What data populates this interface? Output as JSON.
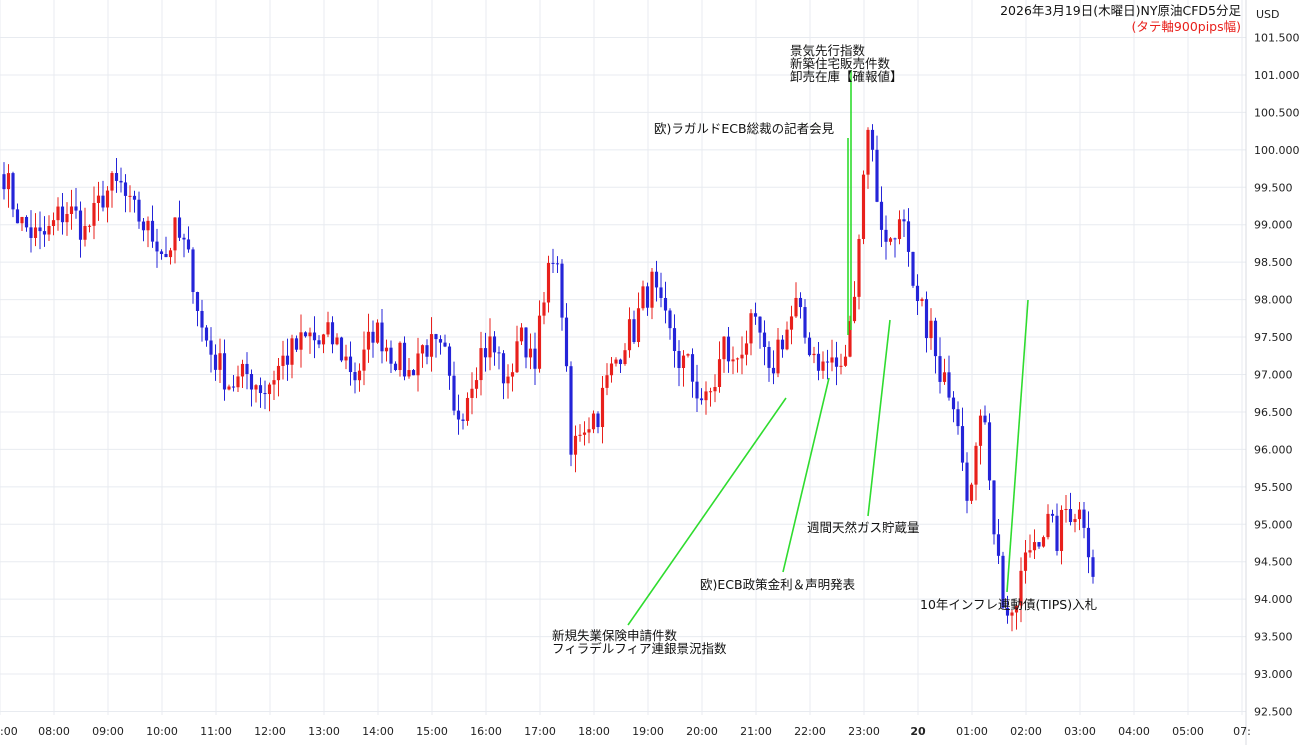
{
  "chart_data": {
    "type": "candlestick",
    "title": "2026年3月19日(木曜日)NY原油CFD5分足",
    "subtitle": "(タテ軸900pips幅)",
    "currency": "USD",
    "ylim": [
      92.5,
      101.5
    ],
    "y_ticks": [
      "92.500",
      "93.000",
      "93.500",
      "94.000",
      "94.500",
      "95.000",
      "95.500",
      "96.000",
      "96.500",
      "97.000",
      "97.500",
      "98.000",
      "98.500",
      "99.000",
      "99.500",
      "100.000",
      "100.500",
      "101.000",
      "101.500"
    ],
    "x_ticks": [
      ":00",
      "08:00",
      "09:00",
      "10:00",
      "11:00",
      "12:00",
      "13:00",
      "14:00",
      "15:00",
      "16:00",
      "17:00",
      "18:00",
      "19:00",
      "20:00",
      "21:00",
      "22:00",
      "23:00",
      "20",
      "01:00",
      "02:00",
      "03:00",
      "04:00",
      "05:00",
      "07:"
    ],
    "x_start": "07:00",
    "bar_minutes": 5,
    "grid": true,
    "colors": {
      "up": "#e8201c",
      "down": "#2424d8",
      "annotation_line": "#2fdc2f",
      "subtitle": "#e8201c",
      "grid": "#e8ebf0"
    },
    "series": [
      {
        "anchors": [
          [
            0,
            99.7
          ],
          [
            2,
            99.3
          ],
          [
            4,
            99.0
          ],
          [
            6,
            98.9
          ],
          [
            8,
            98.8
          ],
          [
            10,
            98.9
          ],
          [
            12,
            99.1
          ],
          [
            14,
            99.2
          ],
          [
            16,
            99.1
          ],
          [
            18,
            98.9
          ],
          [
            20,
            99.1
          ],
          [
            22,
            99.4
          ],
          [
            24,
            99.5
          ],
          [
            26,
            99.5
          ],
          [
            28,
            99.2
          ],
          [
            30,
            99.1
          ],
          [
            32,
            98.9
          ],
          [
            34,
            98.8
          ],
          [
            36,
            98.6
          ],
          [
            38,
            98.9
          ],
          [
            40,
            98.7
          ],
          [
            42,
            98.3
          ],
          [
            44,
            97.6
          ],
          [
            46,
            97.3
          ],
          [
            48,
            97.1
          ],
          [
            50,
            96.9
          ],
          [
            52,
            96.9
          ],
          [
            54,
            97.0
          ],
          [
            56,
            96.9
          ],
          [
            58,
            96.8
          ],
          [
            60,
            97.0
          ],
          [
            62,
            97.2
          ],
          [
            64,
            97.3
          ],
          [
            66,
            97.4
          ],
          [
            68,
            97.5
          ],
          [
            70,
            97.4
          ],
          [
            72,
            97.5
          ],
          [
            74,
            97.4
          ],
          [
            76,
            97.2
          ],
          [
            78,
            97.0
          ],
          [
            80,
            97.2
          ],
          [
            82,
            97.6
          ],
          [
            84,
            97.5
          ],
          [
            86,
            97.3
          ],
          [
            88,
            97.2
          ],
          [
            90,
            97.0
          ],
          [
            92,
            97.3
          ],
          [
            94,
            97.4
          ],
          [
            96,
            97.3
          ],
          [
            98,
            97.2
          ],
          [
            100,
            96.4
          ],
          [
            102,
            96.6
          ],
          [
            104,
            97.0
          ],
          [
            106,
            97.3
          ],
          [
            108,
            97.4
          ],
          [
            110,
            97.2
          ],
          [
            112,
            96.8
          ],
          [
            114,
            97.5
          ],
          [
            116,
            97.4
          ],
          [
            118,
            97.3
          ],
          [
            120,
            97.9
          ],
          [
            122,
            98.7
          ],
          [
            124,
            97.9
          ],
          [
            126,
            95.9
          ],
          [
            128,
            96.3
          ],
          [
            130,
            96.4
          ],
          [
            132,
            96.5
          ],
          [
            134,
            96.9
          ],
          [
            136,
            97.2
          ],
          [
            138,
            97.5
          ],
          [
            140,
            97.6
          ],
          [
            142,
            98.0
          ],
          [
            144,
            98.2
          ],
          [
            146,
            97.8
          ],
          [
            148,
            97.5
          ],
          [
            150,
            97.2
          ],
          [
            152,
            97.1
          ],
          [
            154,
            96.8
          ],
          [
            156,
            96.6
          ],
          [
            158,
            96.9
          ],
          [
            160,
            97.4
          ],
          [
            162,
            97.1
          ],
          [
            164,
            97.4
          ],
          [
            166,
            97.6
          ],
          [
            168,
            97.5
          ],
          [
            170,
            96.9
          ],
          [
            172,
            97.4
          ],
          [
            174,
            97.6
          ],
          [
            176,
            97.9
          ],
          [
            178,
            97.5
          ],
          [
            180,
            97.3
          ],
          [
            182,
            97.1
          ],
          [
            184,
            97.2
          ],
          [
            186,
            97.0
          ],
          [
            188,
            97.6
          ],
          [
            190,
            98.9
          ],
          [
            192,
            100.4
          ],
          [
            194,
            99.4
          ],
          [
            196,
            98.7
          ],
          [
            198,
            99.0
          ],
          [
            200,
            98.9
          ],
          [
            202,
            98.0
          ],
          [
            204,
            97.8
          ],
          [
            206,
            97.6
          ],
          [
            208,
            96.8
          ],
          [
            210,
            96.9
          ],
          [
            212,
            96.5
          ],
          [
            214,
            95.5
          ],
          [
            216,
            96.0
          ],
          [
            218,
            96.5
          ],
          [
            220,
            95.0
          ],
          [
            222,
            94.0
          ],
          [
            224,
            93.6
          ],
          [
            226,
            94.3
          ],
          [
            228,
            94.7
          ],
          [
            230,
            94.9
          ],
          [
            232,
            95.0
          ],
          [
            234,
            94.8
          ],
          [
            236,
            95.2
          ],
          [
            238,
            95.2
          ],
          [
            240,
            95.1
          ],
          [
            242,
            94.4
          ]
        ]
      }
    ],
    "annotations": [
      {
        "text": "景気先行指数",
        "text2": "新築住宅販売件数",
        "text3": "卸売在庫【確報値】",
        "time": "22:55",
        "price": 97.5
      },
      {
        "text": "欧)ラガルドECB総裁の記者会見",
        "time": "22:45",
        "price": 97.6
      },
      {
        "text": "新規失業保険申請件数",
        "text2": "フィラデルフィア連銀景況指数",
        "time": "21:30",
        "price": 96.7
      },
      {
        "text": "欧)ECB政策金利＆声明発表",
        "time": "22:15",
        "price": 96.9
      },
      {
        "text": "週間天然ガス貯蔵量",
        "time": "23:30",
        "price": 97.6
      },
      {
        "text": "10年インフレ連動債(TIPS)入札",
        "time": "02:00",
        "price": 97.9
      }
    ]
  }
}
